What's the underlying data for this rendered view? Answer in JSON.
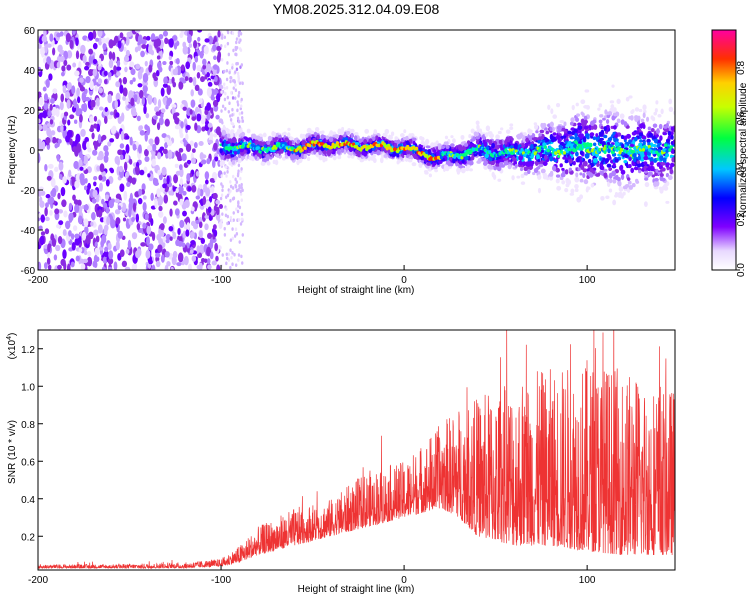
{
  "chart_data": [
    {
      "type": "heatmap",
      "title": "YM08.2025.312.04.09.E08",
      "xlabel": "Height of straight line (km)",
      "ylabel": "Frequency (Hz)",
      "xlim": [
        -200,
        148
      ],
      "ylim": [
        -60,
        60
      ],
      "xticks": [
        -200,
        -100,
        0,
        100
      ],
      "yticks": [
        -60,
        -40,
        -20,
        0,
        20,
        40,
        60
      ],
      "description": "Spectral amplitude ridge: broadband noise for x < -100 km, narrow ridge near 0 Hz from -100 to 148 km, broadening beyond 80 km",
      "ridge": {
        "x": [
          -100,
          -80,
          -60,
          -40,
          -20,
          0,
          20,
          40,
          60,
          80,
          100,
          120,
          148
        ],
        "center_hz": [
          2,
          1,
          1,
          3,
          2,
          1,
          -4,
          0,
          -2,
          0,
          1,
          0,
          0
        ],
        "width_hz": [
          10,
          8,
          7,
          7,
          7,
          7,
          8,
          10,
          12,
          18,
          25,
          25,
          22
        ]
      },
      "colorbar": {
        "label": "Normalized spectral amplitude",
        "range": [
          0,
          0.95
        ],
        "ticks": [
          "0.0",
          "0.2",
          "0.4",
          "0.6",
          "0.8"
        ]
      }
    },
    {
      "type": "line",
      "xlabel": "Height of straight line (km)",
      "ylabel": "SNR (10 * v/v)",
      "multiplier_base": "(x10",
      "multiplier_exp": "4",
      "multiplier_close": ")",
      "xlim": [
        -200,
        148
      ],
      "ylim": [
        0.02,
        1.3
      ],
      "xticks": [
        -200,
        -100,
        0,
        100
      ],
      "yticks": [
        "0.2",
        "0.4",
        "0.6",
        "0.8",
        "1.0",
        "1.2"
      ],
      "color": "#ee3333",
      "envelope": {
        "x": [
          -200,
          -160,
          -120,
          -100,
          -90,
          -80,
          -60,
          -40,
          -20,
          0,
          20,
          30,
          40,
          60,
          80,
          100,
          120,
          148
        ],
        "base": [
          0.03,
          0.03,
          0.03,
          0.04,
          0.06,
          0.1,
          0.15,
          0.2,
          0.25,
          0.3,
          0.35,
          0.3,
          0.2,
          0.15,
          0.15,
          0.12,
          0.1,
          0.1
        ],
        "peak": [
          0.05,
          0.05,
          0.06,
          0.08,
          0.15,
          0.25,
          0.35,
          0.4,
          0.55,
          0.6,
          0.8,
          0.9,
          0.95,
          1.05,
          1.1,
          1.15,
          1.1,
          1.0
        ]
      }
    }
  ]
}
